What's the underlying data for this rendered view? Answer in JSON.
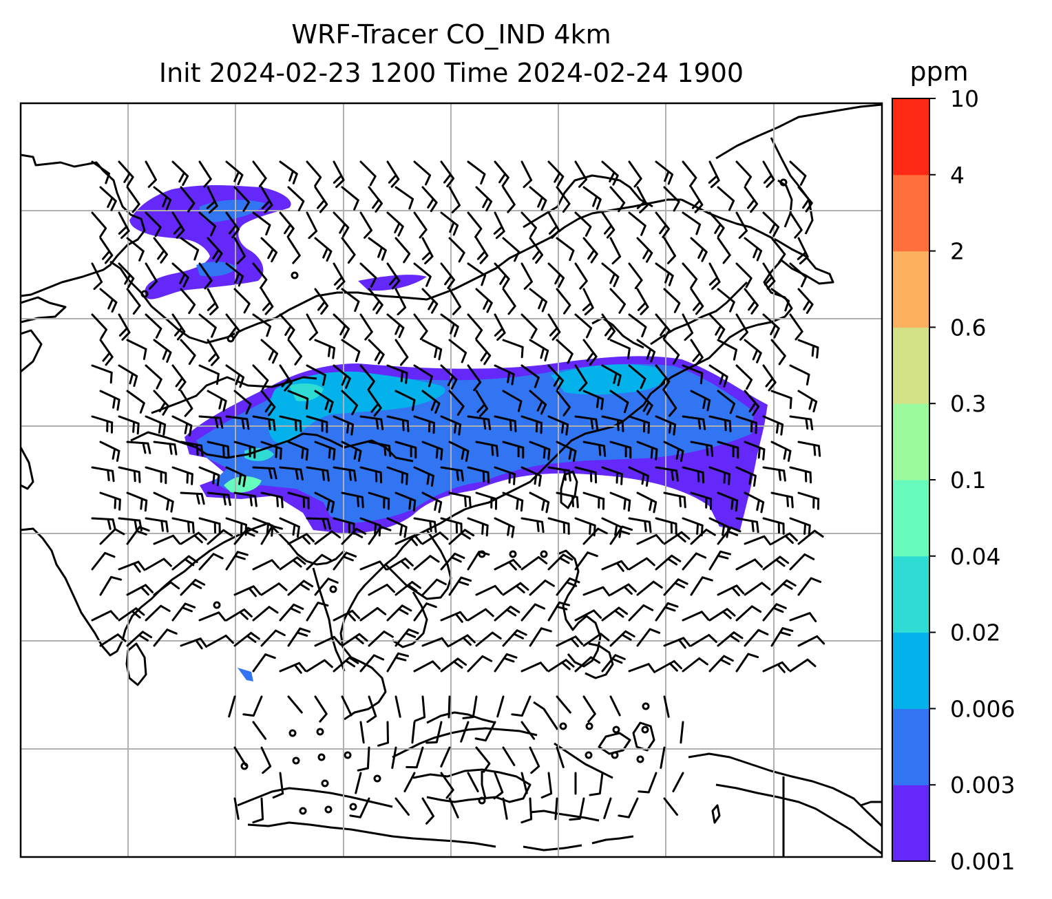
{
  "title": {
    "line1": "WRF-Tracer CO_IND 4km",
    "line2": "Init 2024-02-23 1200 Time 2024-02-24 1900"
  },
  "colorbar": {
    "unit": "ppm",
    "ticks": [
      "0.001",
      "0.003",
      "0.006",
      "0.02",
      "0.04",
      "0.1",
      "0.3",
      "0.6",
      "2",
      "4",
      "10"
    ],
    "colors": [
      "#6428f9",
      "#3275f3",
      "#04b2eb",
      "#2fdcd4",
      "#66fbbc",
      "#9bfa9b",
      "#d2e185",
      "#fdb05e",
      "#fe6f3b",
      "#fe2a16"
    ]
  },
  "map": {
    "gridlines": true,
    "coastline_color": "#000000",
    "grid_color": "#b0b0b0",
    "wind_barb_color": "#000000"
  }
}
